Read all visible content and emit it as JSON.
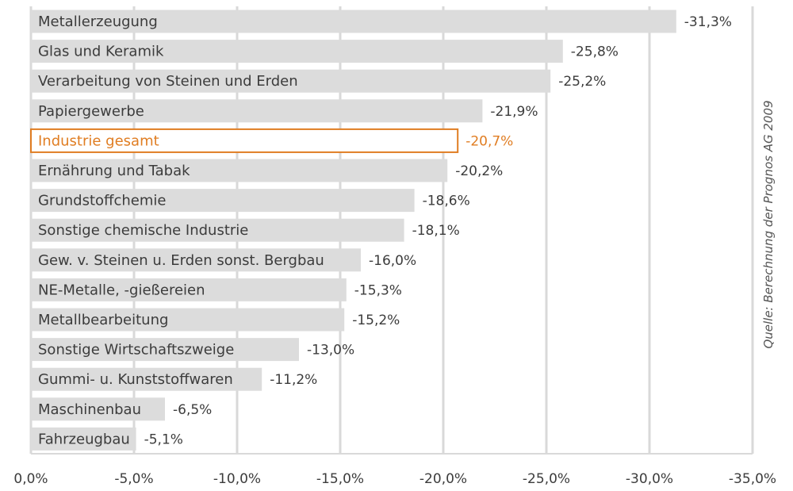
{
  "chart_data": {
    "type": "bar",
    "orientation": "horizontal",
    "categories": [
      "Metallerzeugung",
      "Glas und Keramik",
      "Verarbeitung von Steinen und Erden",
      "Papiergewerbe",
      "Industrie gesamt",
      "Ernährung und Tabak",
      "Grundstoffchemie",
      "Sonstige chemische Industrie",
      "Gew. v. Steinen u. Erden sonst. Bergbau",
      "NE-Metalle, -gießereien",
      "Metallbearbeitung",
      "Sonstige Wirtschaftszweige",
      "Gummi- u. Kunststoffwaren",
      "Maschinenbau",
      "Fahrzeugbau"
    ],
    "values": [
      -31.3,
      -25.8,
      -25.2,
      -21.9,
      -20.7,
      -20.2,
      -18.6,
      -18.1,
      -16.0,
      -15.3,
      -15.2,
      -13.0,
      -11.2,
      -6.5,
      -5.1
    ],
    "value_labels": [
      "-31,3%",
      "-25,8%",
      "-25,2%",
      "-21,9%",
      "-20,7%",
      "-20,2%",
      "-18,6%",
      "-18,1%",
      "-16,0%",
      "-15,3%",
      "-15,2%",
      "-13,0%",
      "-11,2%",
      "-6,5%",
      "-5,1%"
    ],
    "highlight_category": "Industrie gesamt",
    "xlim": [
      0,
      -35
    ],
    "xticks": [
      0,
      -5,
      -10,
      -15,
      -20,
      -25,
      -30,
      -35
    ],
    "xtick_labels": [
      "0,0%",
      "-5,0%",
      "-10,0%",
      "-15,0%",
      "-20,0%",
      "-25,0%",
      "-30,0%",
      "-35,0%"
    ],
    "grid": "vertical",
    "title": "",
    "xlabel": "",
    "ylabel": "",
    "source_note": "Quelle: Berechnung der Prognos AG 2009",
    "colors": {
      "bar": "#dcdcdc",
      "highlight": "#e07d22",
      "text": "#3c3c3c",
      "grid": "#d9d9d9"
    }
  }
}
